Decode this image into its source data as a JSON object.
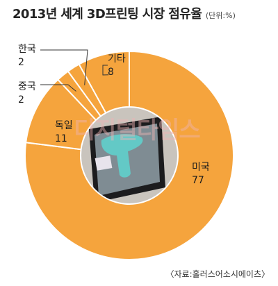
{
  "title": "2013년 세계 3D프린팅 시장 점유율",
  "unit_note": "(단위:%)",
  "source": "〈자료:홀러스어소시에이츠〉",
  "watermark": "디지털타임스",
  "chart_data": {
    "type": "pie",
    "title": "2013년 세계 3D프린팅 시장 점유율",
    "unit": "%",
    "categories": [
      "미국",
      "독일",
      "중국",
      "한국",
      "기타"
    ],
    "values": [
      77,
      11,
      2,
      2,
      8
    ],
    "colors": [
      "#F5A43D",
      "#F5A43D",
      "#F5A43D",
      "#F5A43D",
      "#F5A43D"
    ],
    "labels": [
      {
        "name": "미국",
        "value": "77"
      },
      {
        "name": "독일",
        "value": "11"
      },
      {
        "name": "중국",
        "value": "2"
      },
      {
        "name": "한국",
        "value": "2"
      },
      {
        "name": "기타",
        "value": "8"
      }
    ],
    "donut": true,
    "center_image": "3D printer screen photo"
  }
}
